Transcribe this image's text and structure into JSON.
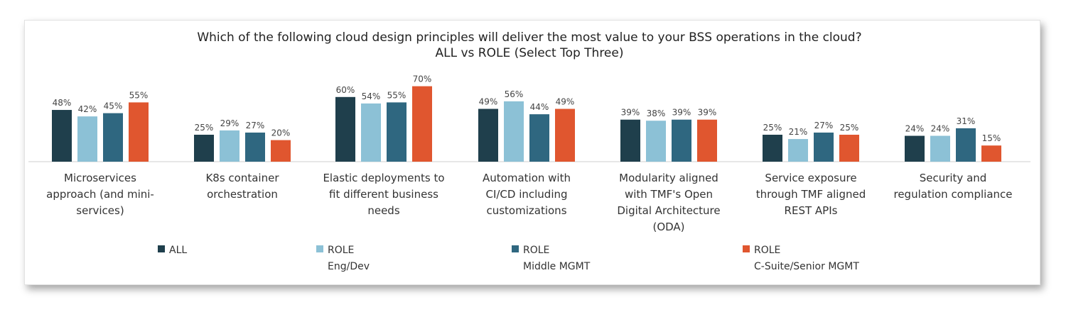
{
  "chart_data": {
    "type": "bar",
    "title": "Which of the following cloud design principles will deliver the most value to your BSS operations in the cloud?",
    "subtitle": "ALL vs ROLE (Select Top Three)",
    "categories": [
      [
        "Microservices",
        "approach (and mini-",
        "services)"
      ],
      [
        "K8s container",
        "orchestration"
      ],
      [
        "Elastic deployments to",
        "fit different business",
        "needs"
      ],
      [
        "Automation with",
        "CI/CD including",
        "customizations"
      ],
      [
        "Modularity aligned",
        "with TMF's Open",
        "Digital Architecture",
        "(ODA)"
      ],
      [
        "Service exposure",
        "through TMF aligned",
        "REST APIs"
      ],
      [
        "Security and",
        "regulation compliance"
      ]
    ],
    "series": [
      {
        "name": "ALL",
        "legend": [
          "ALL"
        ],
        "color": "#1f3f4c",
        "values": [
          48,
          25,
          60,
          49,
          39,
          25,
          24
        ]
      },
      {
        "name": "ROLE Eng/Dev",
        "legend": [
          "ROLE",
          "Eng/Dev"
        ],
        "color": "#8cc1d6",
        "values": [
          42,
          29,
          54,
          56,
          38,
          21,
          24
        ]
      },
      {
        "name": "ROLE Middle MGMT",
        "legend": [
          "ROLE",
          "Middle MGMT"
        ],
        "color": "#2f6780",
        "values": [
          45,
          27,
          55,
          44,
          39,
          27,
          31
        ]
      },
      {
        "name": "ROLE C-Suite/Senior MGMT",
        "legend": [
          "ROLE",
          "C-Suite/Senior MGMT"
        ],
        "color": "#e0562f",
        "values": [
          55,
          20,
          70,
          49,
          39,
          25,
          15
        ]
      }
    ],
    "value_suffix": "%",
    "ylim": [
      0,
      80
    ],
    "grid": false,
    "legend_position": "bottom"
  }
}
